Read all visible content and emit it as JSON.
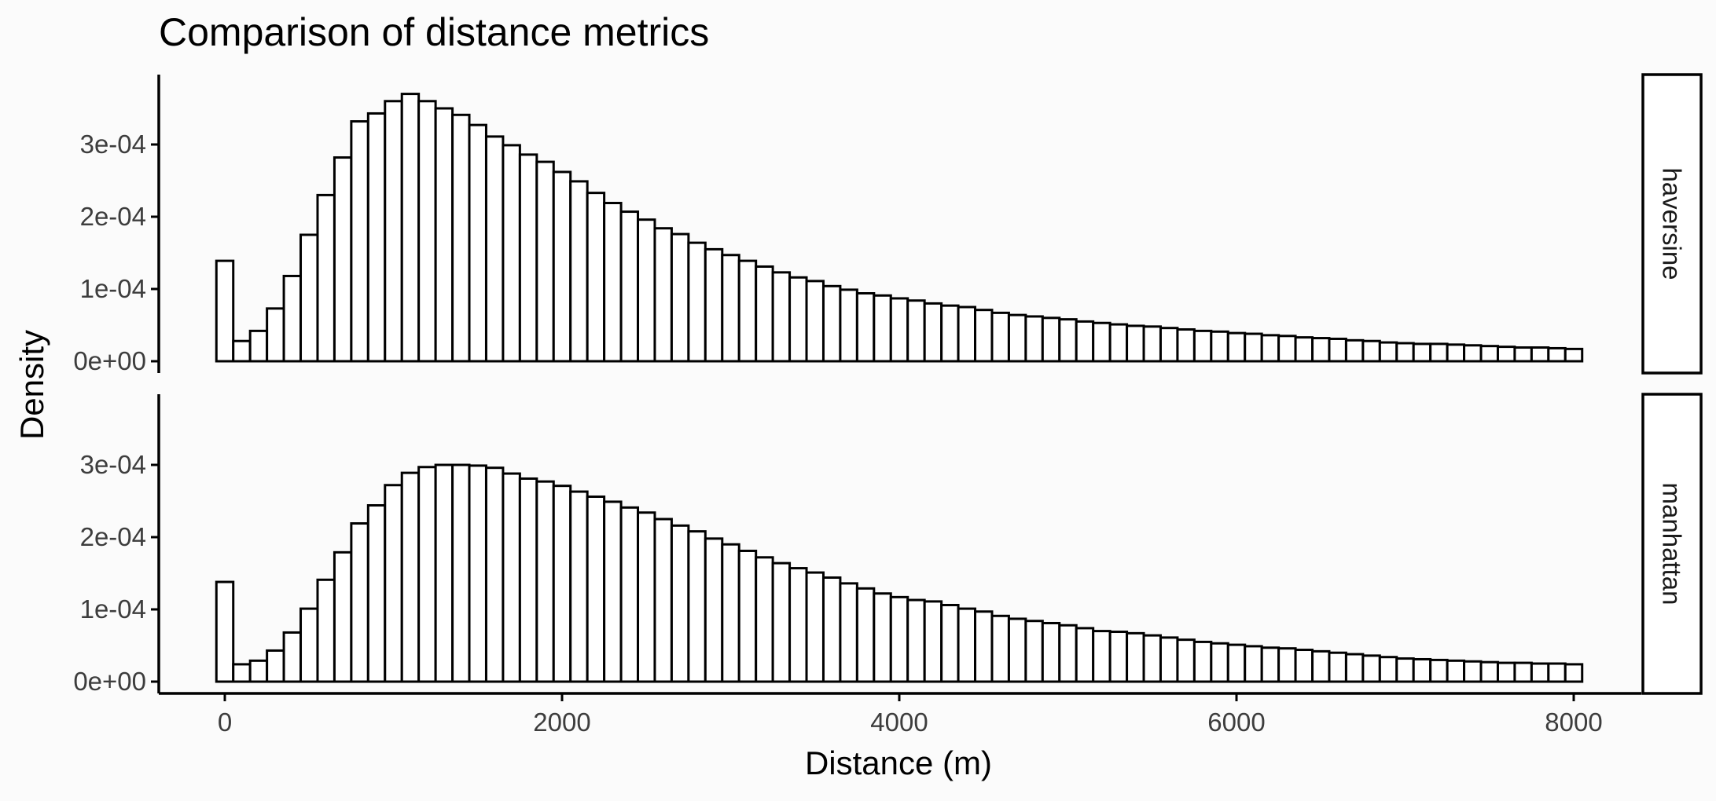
{
  "chart_data": {
    "type": "bar",
    "title": "Comparison of distance metrics",
    "xlabel": "Distance (m)",
    "ylabel": "Density",
    "xlim": [
      0,
      8000
    ],
    "ylim": [
      0,
      0.00038
    ],
    "x_ticks": [
      0,
      2000,
      4000,
      6000,
      8000
    ],
    "x_tick_labels": [
      "0",
      "2000",
      "4000",
      "6000",
      "8000"
    ],
    "y_ticks": [
      0,
      0.0001,
      0.0002,
      0.0003
    ],
    "y_tick_labels": [
      "0e+00",
      "1e-04",
      "2e-04",
      "3e-04"
    ],
    "bin_width": 100,
    "grid": false,
    "panels": [
      {
        "strip_label": "haversine",
        "values": [
          0.000139,
          2.8e-05,
          4.2e-05,
          7.3e-05,
          0.000118,
          0.000175,
          0.00023,
          0.000282,
          0.000332,
          0.000343,
          0.00036,
          0.00037,
          0.00036,
          0.00035,
          0.000341,
          0.000327,
          0.000311,
          0.000299,
          0.000286,
          0.000276,
          0.000262,
          0.000249,
          0.000233,
          0.000219,
          0.000207,
          0.000196,
          0.000184,
          0.000176,
          0.000164,
          0.000155,
          0.000147,
          0.000139,
          0.000131,
          0.000123,
          0.000116,
          0.000111,
          0.000104,
          9.9e-05,
          9.4e-05,
          9.1e-05,
          8.7e-05,
          8.4e-05,
          8e-05,
          7.7e-05,
          7.5e-05,
          7.1e-05,
          6.7e-05,
          6.4e-05,
          6.2e-05,
          6e-05,
          5.8e-05,
          5.5e-05,
          5.3e-05,
          5.1e-05,
          4.9e-05,
          4.8e-05,
          4.6e-05,
          4.4e-05,
          4.2e-05,
          4.1e-05,
          3.9e-05,
          3.8e-05,
          3.6e-05,
          3.5e-05,
          3.3e-05,
          3.2e-05,
          3.1e-05,
          2.9e-05,
          2.8e-05,
          2.6e-05,
          2.5e-05,
          2.4e-05,
          2.4e-05,
          2.3e-05,
          2.2e-05,
          2.1e-05,
          2e-05,
          1.9e-05,
          1.9e-05,
          1.8e-05,
          1.7e-05
        ]
      },
      {
        "strip_label": "manhattan",
        "values": [
          0.000138,
          2.4e-05,
          2.9e-05,
          4.3e-05,
          6.8e-05,
          0.000101,
          0.000141,
          0.000179,
          0.000219,
          0.000244,
          0.000272,
          0.000289,
          0.000297,
          0.0003,
          0.0003,
          0.000299,
          0.000296,
          0.000288,
          0.000281,
          0.000277,
          0.000271,
          0.000263,
          0.000256,
          0.000249,
          0.000241,
          0.000234,
          0.000225,
          0.000216,
          0.000208,
          0.000198,
          0.00019,
          0.000181,
          0.000172,
          0.000164,
          0.000157,
          0.000151,
          0.000144,
          0.000136,
          0.000129,
          0.000122,
          0.000117,
          0.000113,
          0.000111,
          0.000106,
          0.000101,
          9.7e-05,
          9.1e-05,
          8.7e-05,
          8.4e-05,
          8.1e-05,
          7.8e-05,
          7.4e-05,
          7e-05,
          6.9e-05,
          6.7e-05,
          6.4e-05,
          6.1e-05,
          5.8e-05,
          5.5e-05,
          5.3e-05,
          5.1e-05,
          4.9e-05,
          4.7e-05,
          4.6e-05,
          4.4e-05,
          4.2e-05,
          4e-05,
          3.8e-05,
          3.6e-05,
          3.4e-05,
          3.2e-05,
          3.1e-05,
          3e-05,
          2.9e-05,
          2.8e-05,
          2.7e-05,
          2.6e-05,
          2.6e-05,
          2.5e-05,
          2.5e-05,
          2.4e-05
        ]
      }
    ]
  }
}
